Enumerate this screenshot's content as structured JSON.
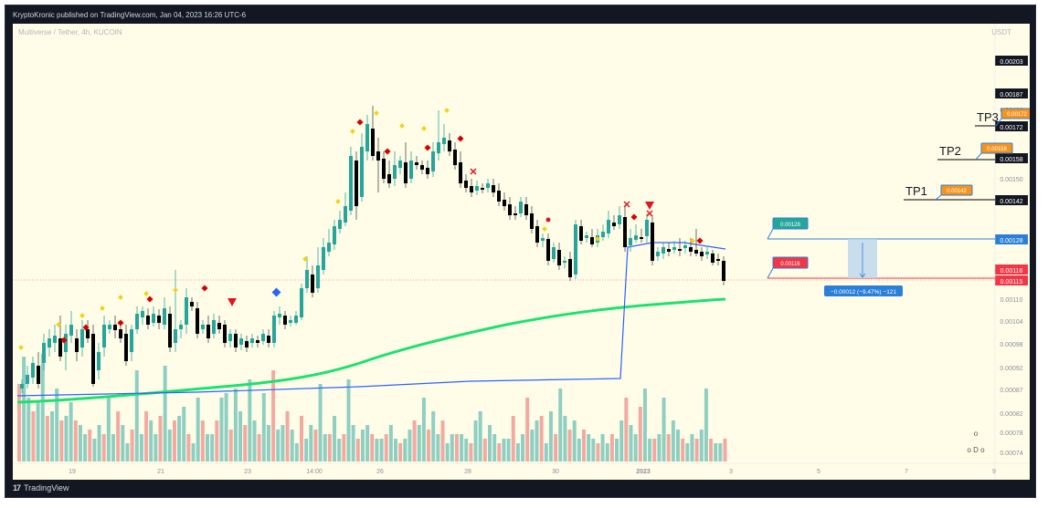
{
  "header": {
    "publisher_text": "KryptoKronic published on TradingView.com, Jan 04, 2023 16:26 UTC-6"
  },
  "chart": {
    "symbol_text": "Multiverse / Tether, 4h, KUCOIN",
    "currency": "USDT",
    "colors": {
      "up": "#26a69a",
      "up_fill": "#26a69a",
      "down": "#000000",
      "vol_up": "#8ecfc3",
      "vol_down": "#f4a9a0",
      "ma_green": "#1de26f",
      "ma_blue": "#2962ff",
      "tp_line": "#000000",
      "orange_badge": "#f7931a",
      "green_badge": "#26a69a",
      "red_badge": "#f23645",
      "blue_badge": "#2a7fd9"
    },
    "price_axis": [
      {
        "label": "0.00203",
        "highlight": "black"
      },
      {
        "label": "0.00187",
        "highlight": "black"
      },
      {
        "label": "0.00180",
        "highlight": "none"
      },
      {
        "label": "0.00172",
        "highlight": "black"
      },
      {
        "label": "0.00158",
        "highlight": "black"
      },
      {
        "label": "0.00150",
        "highlight": "none"
      },
      {
        "label": "0.00142",
        "highlight": "black"
      },
      {
        "label": "0.00128",
        "highlight": "blue"
      },
      {
        "label": "0.00116",
        "highlight": "red"
      },
      {
        "label": "0.00115",
        "highlight": "red"
      },
      {
        "label": "0.00110",
        "highlight": "none"
      },
      {
        "label": "0.00104",
        "highlight": "none"
      },
      {
        "label": "0.00098",
        "highlight": "none"
      },
      {
        "label": "0.00092",
        "highlight": "none"
      },
      {
        "label": "0.00087",
        "highlight": "none"
      },
      {
        "label": "0.00082",
        "highlight": "none"
      },
      {
        "label": "0.00078",
        "highlight": "none"
      },
      {
        "label": "0.00074",
        "highlight": "none"
      }
    ],
    "time_axis": [
      "19",
      "21",
      "23",
      "14:00",
      "26",
      "28",
      "30",
      "2023",
      "3",
      "5",
      "7",
      "9"
    ],
    "targets": [
      {
        "label": "TP1",
        "price_badge": "0.00142"
      },
      {
        "label": "TP2",
        "price_badge": "0.00158"
      },
      {
        "label": "TP3",
        "price_badge": "0.00172"
      }
    ],
    "entry_badge": "0.00128",
    "stop_badge": "0.00116",
    "measure_label": "−0.00012 (−9.47%) −121",
    "watermark_text": "o D o",
    "watermark_dot": "o"
  },
  "footer": {
    "brand": "TradingView",
    "logo_text": "17"
  }
}
